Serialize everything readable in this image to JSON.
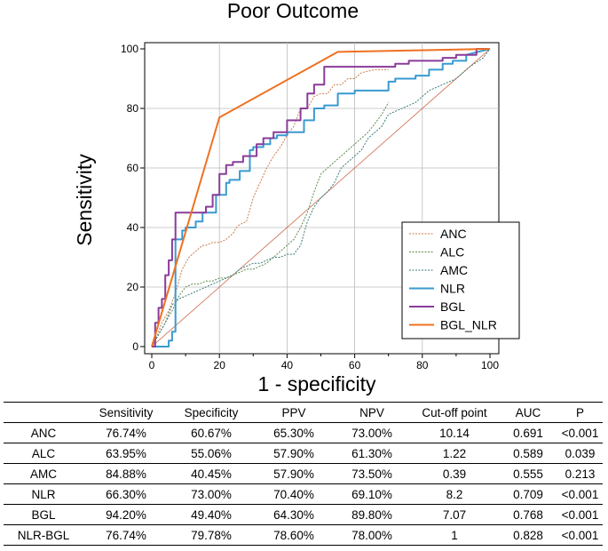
{
  "chart_data": {
    "type": "line",
    "title": "Poor Outcome",
    "xlabel": "1 - specificity",
    "ylabel": "Sensitivity",
    "xlim": [
      0,
      100
    ],
    "ylim": [
      0,
      100
    ],
    "xticks": [
      "0",
      "20",
      "40",
      "60",
      "80",
      "100"
    ],
    "yticks": [
      "0",
      "20",
      "40",
      "60",
      "80",
      "100"
    ],
    "grid": true,
    "legend_position": "bottom-right",
    "reference_line": {
      "x": [
        0,
        100
      ],
      "y": [
        0,
        100
      ],
      "color": "#cc6644"
    },
    "series": [
      {
        "name": "ANC",
        "color": "#cc7a4a",
        "style": "dotted",
        "x": [
          0,
          2,
          3,
          4,
          5,
          6,
          7,
          8,
          9,
          10,
          11,
          12,
          13,
          14,
          15,
          16,
          18,
          20,
          22,
          24,
          25,
          26,
          28,
          30,
          32,
          34,
          36,
          38,
          40,
          42,
          44,
          46,
          48,
          50,
          52,
          54,
          56,
          58,
          60,
          62,
          66,
          70
        ],
        "y": [
          0,
          5,
          8,
          10,
          12,
          15,
          18,
          22,
          26,
          28,
          30,
          31,
          32,
          33,
          34,
          34,
          35,
          35,
          36,
          38,
          40,
          41,
          42,
          50,
          55,
          60,
          64,
          67,
          71,
          74,
          80,
          80,
          84,
          85,
          85,
          88,
          88,
          90,
          90,
          92,
          93,
          93
        ]
      },
      {
        "name": "ALC",
        "color": "#5a8a4a",
        "style": "dotted",
        "x": [
          0,
          3,
          6,
          8,
          10,
          12,
          14,
          16,
          18,
          20,
          22,
          24,
          26,
          28,
          30,
          32,
          34,
          36,
          38,
          40,
          42,
          44,
          46,
          48,
          50,
          52,
          54,
          56,
          58,
          60,
          62,
          64,
          66,
          68,
          70
        ],
        "y": [
          0,
          6,
          12,
          17,
          20,
          21,
          21,
          22,
          22,
          23,
          23,
          24,
          25,
          26,
          26,
          27,
          28,
          30,
          32,
          34,
          36,
          40,
          45,
          52,
          58,
          60,
          62,
          64,
          66,
          68,
          70,
          72,
          75,
          78,
          82
        ]
      },
      {
        "name": "AMC",
        "color": "#3c7a7a",
        "style": "dotted",
        "x": [
          0,
          4,
          6,
          8,
          10,
          12,
          14,
          16,
          18,
          20,
          22,
          24,
          26,
          28,
          30,
          32,
          34,
          36,
          38,
          40,
          42,
          44,
          46,
          48,
          50,
          52,
          54,
          56,
          58,
          60,
          62,
          64,
          66,
          68,
          70,
          74,
          78,
          82,
          86,
          90,
          94,
          98,
          100
        ],
        "y": [
          0,
          8,
          14,
          16,
          17,
          18,
          19,
          20,
          21,
          22,
          23,
          24,
          26,
          27,
          28,
          28,
          29,
          30,
          30,
          31,
          31,
          34,
          42,
          47,
          50,
          52,
          55,
          60,
          62,
          64,
          66,
          70,
          72,
          74,
          78,
          80,
          82,
          86,
          88,
          90,
          94,
          97,
          100
        ]
      },
      {
        "name": "NLR",
        "color": "#3a9ad0",
        "style": "solid",
        "x": [
          0,
          5,
          5,
          6,
          6,
          7,
          7,
          9,
          9,
          10,
          10,
          13,
          13,
          15,
          15,
          19,
          19,
          22,
          22,
          23,
          23,
          26,
          26,
          29,
          29,
          30,
          30,
          33,
          33,
          35,
          35,
          37,
          37,
          40,
          40,
          45,
          45,
          48,
          48,
          51,
          51,
          55,
          55,
          60,
          60,
          70,
          70,
          72,
          72,
          78,
          78,
          82,
          82,
          86,
          86,
          89,
          89,
          93,
          93,
          100
        ],
        "y": [
          0,
          0,
          2,
          2,
          5,
          5,
          36,
          36,
          39,
          39,
          40,
          40,
          42,
          42,
          45,
          45,
          51,
          51,
          55,
          55,
          56,
          56,
          59,
          59,
          66,
          66,
          67,
          67,
          68,
          68,
          70,
          70,
          71,
          71,
          72,
          72,
          76,
          76,
          80,
          80,
          81,
          81,
          85,
          85,
          86,
          86,
          89,
          89,
          90,
          90,
          91,
          91,
          93,
          93,
          95,
          95,
          96,
          96,
          98,
          100
        ]
      },
      {
        "name": "BGL",
        "color": "#8a3c9a",
        "style": "solid",
        "x": [
          0,
          1,
          1,
          2,
          2,
          3,
          3,
          4,
          4,
          5,
          5,
          6,
          6,
          7,
          7,
          10,
          10,
          16,
          16,
          18,
          18,
          20,
          20,
          22,
          22,
          24,
          24,
          27,
          27,
          31,
          31,
          33,
          33,
          36,
          36,
          40,
          40,
          44,
          44,
          46,
          46,
          48,
          48,
          51,
          51,
          66,
          66,
          72,
          72,
          76,
          76,
          86,
          86,
          90,
          90,
          96,
          96,
          100
        ],
        "y": [
          0,
          0,
          8,
          8,
          13,
          13,
          16,
          16,
          24,
          24,
          29,
          29,
          36,
          36,
          45,
          45,
          45,
          45,
          47,
          47,
          51,
          51,
          58,
          58,
          61,
          61,
          62,
          62,
          64,
          64,
          68,
          68,
          70,
          70,
          72,
          72,
          76,
          76,
          80,
          80,
          85,
          85,
          88,
          88,
          94,
          94,
          94,
          94,
          95,
          95,
          96,
          96,
          97,
          97,
          98,
          98,
          100,
          100
        ]
      },
      {
        "name": "BGL_NLR",
        "color": "#f07020",
        "style": "solid",
        "x": [
          0,
          20,
          55,
          100
        ],
        "y": [
          0,
          77,
          99,
          100
        ]
      }
    ]
  },
  "table": {
    "headers": [
      "",
      "Sensitivity",
      "Specificity",
      "PPV",
      "NPV",
      "Cut-off point",
      "AUC",
      "P"
    ],
    "rows": [
      [
        "ANC",
        "76.74%",
        "60.67%",
        "65.30%",
        "73.00%",
        "10.14",
        "0.691",
        "<0.001"
      ],
      [
        "ALC",
        "63.95%",
        "55.06%",
        "57.90%",
        "61.30%",
        "1.22",
        "0.589",
        "0.039"
      ],
      [
        "AMC",
        "84.88%",
        "40.45%",
        "57.90%",
        "73.50%",
        "0.39",
        "0.555",
        "0.213"
      ],
      [
        "NLR",
        "66.30%",
        "73.00%",
        "70.40%",
        "69.10%",
        "8.2",
        "0.709",
        "<0.001"
      ],
      [
        "BGL",
        "94.20%",
        "49.40%",
        "64.30%",
        "89.80%",
        "7.07",
        "0.768",
        "<0.001"
      ],
      [
        "NLR-BGL",
        "76.74%",
        "79.78%",
        "78.60%",
        "78.00%",
        "1",
        "0.828",
        "<0.001"
      ]
    ]
  }
}
